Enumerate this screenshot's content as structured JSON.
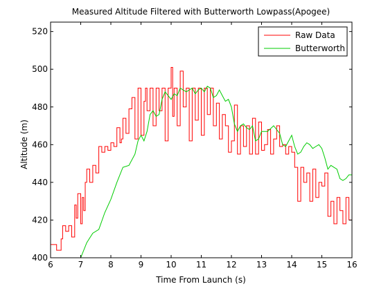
{
  "chart_data": {
    "type": "line",
    "title": "Measured Altitude Filtered with Butterworth Lowpass(Apogee)",
    "xlabel": "Time From Launch (s)",
    "ylabel": "Altitude (m)",
    "xlim": [
      6,
      16
    ],
    "ylim": [
      400,
      525
    ],
    "xticks": [
      6,
      7,
      8,
      9,
      10,
      11,
      12,
      13,
      14,
      15,
      16
    ],
    "yticks": [
      400,
      420,
      440,
      460,
      480,
      500,
      520
    ],
    "grid": false,
    "legend_position": "top-right",
    "series": [
      {
        "name": "Raw Data",
        "color": "#ff0000",
        "style": "step",
        "x": [
          6.0,
          6.2,
          6.35,
          6.4,
          6.5,
          6.6,
          6.7,
          6.8,
          6.85,
          6.9,
          7.0,
          7.05,
          7.1,
          7.15,
          7.2,
          7.3,
          7.4,
          7.5,
          7.6,
          7.7,
          7.8,
          7.9,
          8.0,
          8.1,
          8.2,
          8.3,
          8.35,
          8.4,
          8.5,
          8.6,
          8.7,
          8.8,
          8.9,
          9.0,
          9.1,
          9.15,
          9.2,
          9.3,
          9.4,
          9.5,
          9.6,
          9.7,
          9.8,
          9.9,
          10.0,
          10.05,
          10.1,
          10.2,
          10.3,
          10.4,
          10.5,
          10.6,
          10.7,
          10.8,
          10.9,
          11.0,
          11.1,
          11.2,
          11.3,
          11.4,
          11.5,
          11.6,
          11.7,
          11.8,
          11.9,
          12.0,
          12.1,
          12.2,
          12.3,
          12.4,
          12.5,
          12.6,
          12.7,
          12.8,
          12.9,
          13.0,
          13.1,
          13.2,
          13.3,
          13.4,
          13.5,
          13.6,
          13.7,
          13.8,
          13.9,
          14.0,
          14.1,
          14.2,
          14.3,
          14.4,
          14.5,
          14.6,
          14.7,
          14.8,
          14.9,
          15.0,
          15.1,
          15.2,
          15.3,
          15.4,
          15.5,
          15.6,
          15.7,
          15.8,
          15.9,
          16.0
        ],
        "y": [
          407,
          404,
          410,
          417,
          414,
          417,
          411,
          428,
          421,
          434,
          418,
          432,
          425,
          440,
          447,
          440,
          449,
          445,
          459,
          456,
          459,
          457,
          461,
          459,
          469,
          461,
          463,
          474,
          466,
          479,
          485,
          463,
          490,
          465,
          483,
          490,
          478,
          490,
          470,
          490,
          478,
          490,
          462,
          490,
          501,
          475,
          490,
          470,
          499,
          480,
          490,
          462,
          490,
          473,
          490,
          465,
          490,
          476,
          490,
          470,
          482,
          463,
          476,
          470,
          456,
          462,
          481,
          455,
          470,
          459,
          470,
          455,
          474,
          455,
          472,
          457,
          460,
          468,
          455,
          463,
          470,
          459,
          460,
          455,
          459,
          456,
          448,
          430,
          448,
          440,
          445,
          430,
          447,
          432,
          440,
          438,
          445,
          422,
          430,
          418,
          432,
          425,
          418,
          432,
          420,
          425
        ]
      },
      {
        "name": "Butterworth",
        "color": "#00cc00",
        "style": "line",
        "x": [
          7.0,
          7.2,
          7.4,
          7.6,
          7.8,
          8.0,
          8.2,
          8.4,
          8.6,
          8.8,
          8.9,
          9.0,
          9.1,
          9.2,
          9.3,
          9.4,
          9.5,
          9.6,
          9.7,
          9.8,
          9.9,
          10.0,
          10.1,
          10.2,
          10.3,
          10.4,
          10.5,
          10.6,
          10.7,
          10.8,
          10.9,
          11.0,
          11.1,
          11.2,
          11.3,
          11.4,
          11.5,
          11.6,
          11.7,
          11.8,
          11.9,
          12.0,
          12.1,
          12.2,
          12.3,
          12.4,
          12.5,
          12.6,
          12.7,
          12.8,
          12.9,
          13.0,
          13.2,
          13.4,
          13.5,
          13.6,
          13.7,
          13.8,
          13.9,
          14.0,
          14.1,
          14.2,
          14.3,
          14.4,
          14.5,
          14.6,
          14.7,
          14.8,
          14.9,
          15.0,
          15.1,
          15.2,
          15.3,
          15.4,
          15.5,
          15.6,
          15.7,
          15.8,
          15.9,
          16.0
        ],
        "y": [
          400,
          408,
          413,
          415,
          424,
          431,
          440,
          448,
          449,
          455,
          462,
          465,
          462,
          467,
          476,
          478,
          475,
          476,
          484,
          488,
          486,
          484,
          487,
          486,
          490,
          489,
          488,
          489,
          490,
          487,
          489,
          490,
          488,
          491,
          490,
          485,
          486,
          489,
          486,
          483,
          484,
          480,
          471,
          467,
          470,
          471,
          469,
          468,
          470,
          462,
          463,
          467,
          467,
          470,
          468,
          466,
          460,
          459,
          462,
          465,
          459,
          455,
          456,
          459,
          461,
          460,
          458,
          459,
          460,
          458,
          453,
          447,
          449,
          448,
          447,
          442,
          441,
          442,
          444,
          444
        ]
      }
    ]
  }
}
